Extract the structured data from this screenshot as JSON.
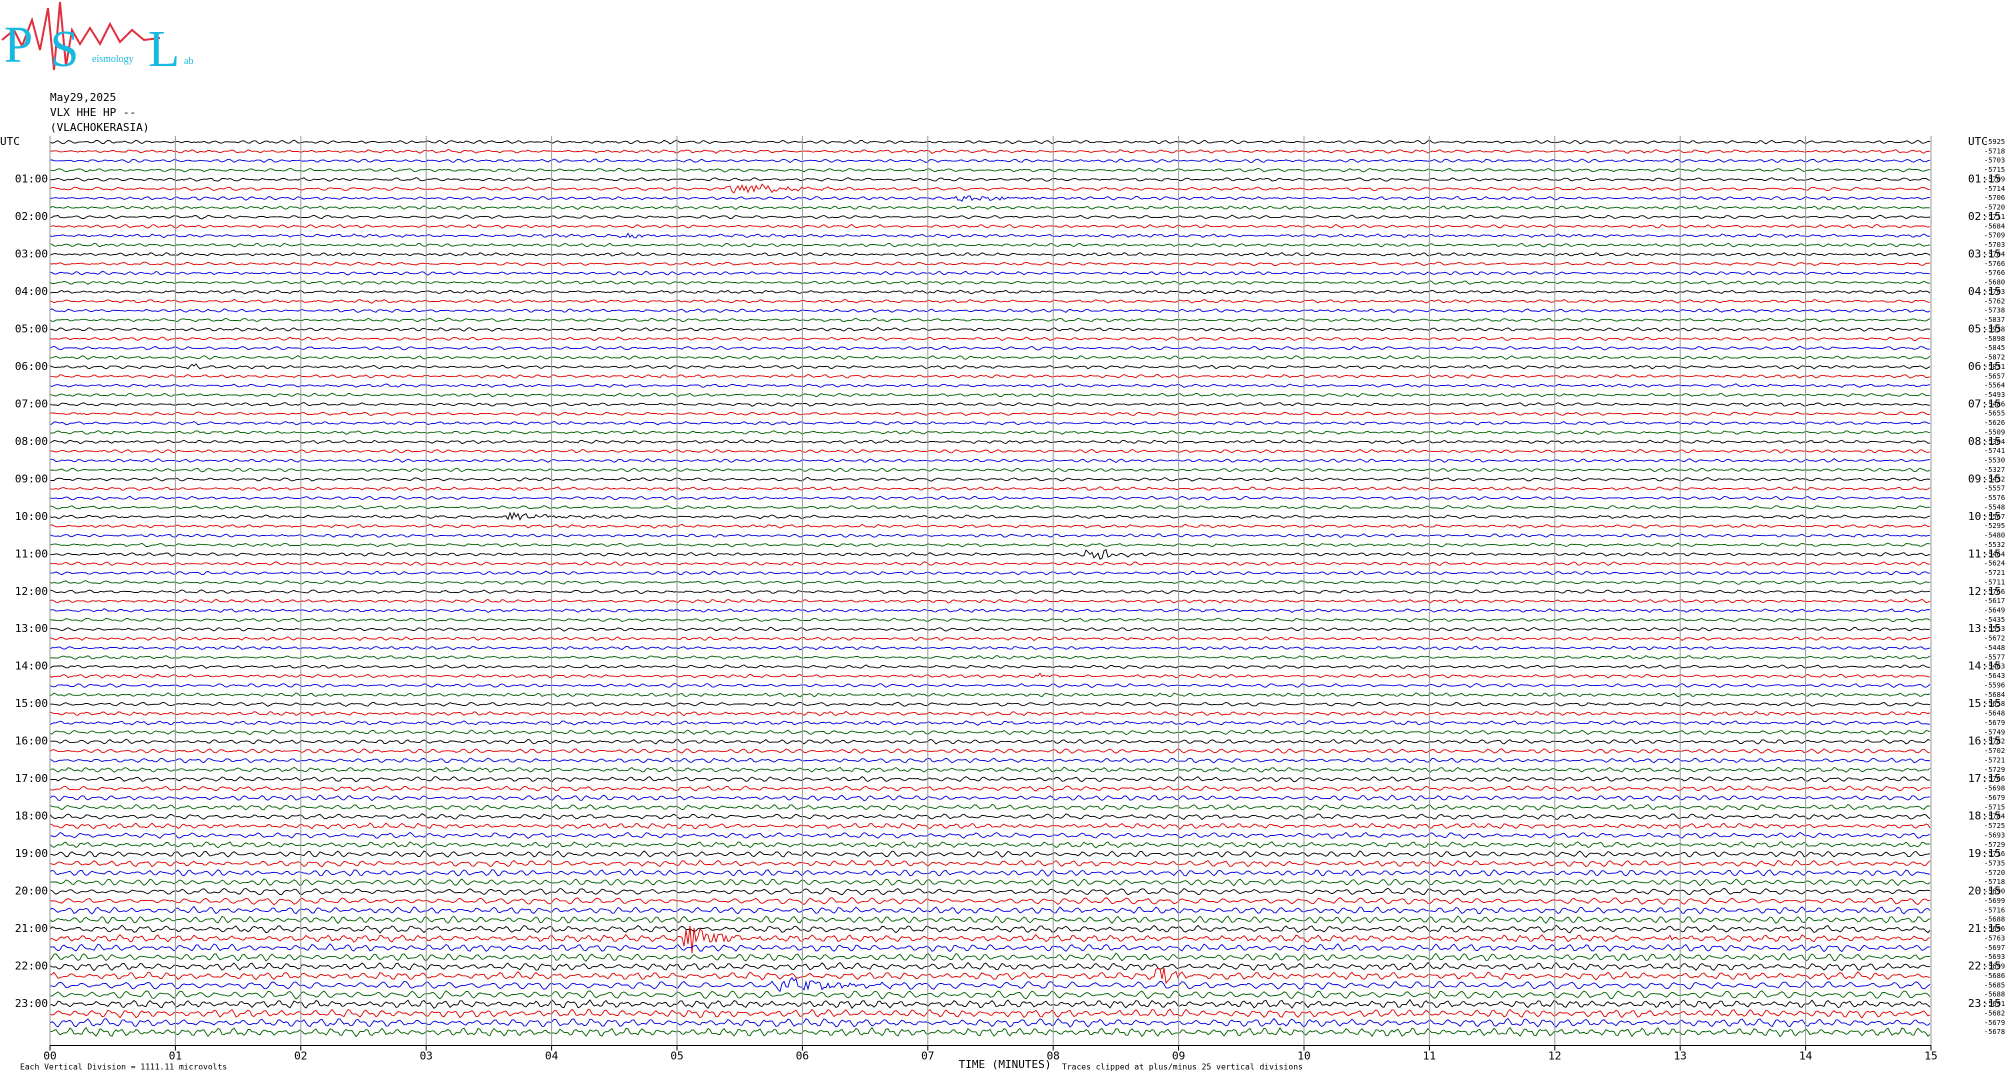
{
  "logo": {
    "big": [
      "P",
      "S",
      "L"
    ],
    "small": [
      "eismology",
      "ab"
    ]
  },
  "header": {
    "date": "May29,2025",
    "station": "VLX HHE HP --",
    "location": "(VLACHOKERASIA)"
  },
  "chart_data": {
    "type": "helicorder",
    "xlabel": "TIME (MINUTES)",
    "scale_note": "Each Vertical Division = 1111.11 microvolts",
    "clip_note": "Traces clipped at plus/minus 25 vertical divisions",
    "xlim": [
      0,
      15
    ],
    "xticks": [
      {
        "value": 0,
        "label": "00"
      },
      {
        "value": 1,
        "label": "01"
      },
      {
        "value": 2,
        "label": "02"
      },
      {
        "value": 3,
        "label": "03"
      },
      {
        "value": 4,
        "label": "04"
      },
      {
        "value": 5,
        "label": "05"
      },
      {
        "value": 6,
        "label": "06"
      },
      {
        "value": 7,
        "label": "07"
      },
      {
        "value": 8,
        "label": "08"
      },
      {
        "value": 9,
        "label": "09"
      },
      {
        "value": 10,
        "label": "10"
      },
      {
        "value": 11,
        "label": "11"
      },
      {
        "value": 12,
        "label": "12"
      },
      {
        "value": 13,
        "label": "13"
      },
      {
        "value": 14,
        "label": "14"
      },
      15
    ],
    "colors": [
      "#000000",
      "#e00000",
      "#0000e0",
      "#006000"
    ],
    "left_labels": [
      "UTC",
      "01:00",
      "02:00",
      "03:00",
      "04:00",
      "05:00",
      "06:00",
      "07:00",
      "08:00",
      "09:00",
      "10:00",
      "11:00",
      "12:00",
      "13:00",
      "14:00",
      "15:00",
      "16:00",
      "17:00",
      "18:00",
      "19:00",
      "20:00",
      "21:00",
      "22:00",
      "23:00"
    ],
    "right_labels": [
      "UTC",
      "01:15",
      "02:15",
      "03:15",
      "04:15",
      "05:15",
      "06:15",
      "07:15",
      "08:15",
      "09:15",
      "10:15",
      "11:15",
      "12:15",
      "13:15",
      "14:15",
      "15:15",
      "16:15",
      "17:15",
      "18:15",
      "19:15",
      "20:15",
      "21:15",
      "22:15",
      "23:15"
    ],
    "offsets": [
      -5925,
      -5718,
      -5703,
      -5715,
      -5709,
      -5714,
      -5706,
      -5720,
      -5711,
      -5684,
      -5709,
      -5703,
      -5704,
      -5766,
      -5766,
      -5680,
      -5703,
      -5762,
      -5738,
      -5837,
      -5938,
      -5898,
      -5845,
      -5872,
      -5831,
      -5657,
      -5564,
      -5493,
      -5486,
      -5655,
      -5626,
      -5509,
      -5304,
      -5741,
      -5530,
      -5327,
      -5432,
      -5557,
      -5576,
      -5548,
      -5567,
      -5295,
      -5480,
      -5532,
      -5464,
      -5624,
      -5721,
      -5711,
      -5766,
      -5617,
      -5649,
      -5435,
      -5553,
      -5672,
      -5448,
      -5577,
      -5463,
      -5643,
      -5596,
      -5684,
      -5658,
      -5648,
      -5679,
      -5749,
      -5782,
      -5702,
      -5721,
      -5729,
      -5766,
      -5698,
      -5679,
      -5715,
      -5784,
      -5725,
      -5693,
      -5729,
      -5716,
      -5735,
      -5720,
      -5718,
      -5690,
      -5699,
      -5716,
      -5688,
      -5696,
      -5763,
      -5697,
      -5693,
      -5699,
      -5686,
      -5685,
      -5688,
      -5691,
      -5682,
      -5679,
      -5678
    ]
  }
}
